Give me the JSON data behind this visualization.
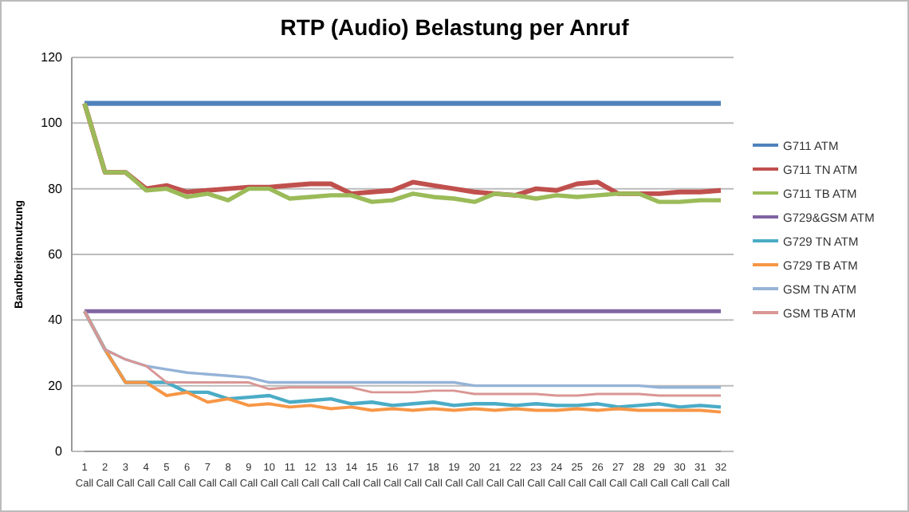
{
  "chart_data": {
    "type": "line",
    "title": "RTP (Audio) Belastung per Anruf",
    "ylabel": "Bandbreitennutzung",
    "categories": [
      "1 Call",
      "2 Call",
      "3 Call",
      "4 Call",
      "5 Call",
      "6 Call",
      "7 Call",
      "8 Call",
      "9 Call",
      "10 Call",
      "11 Call",
      "12 Call",
      "13 Call",
      "14 Call",
      "15 Call",
      "16 Call",
      "17 Call",
      "18 Call",
      "19 Call",
      "20 Call",
      "21 Call",
      "22 Call",
      "23 Call",
      "24 Call",
      "25 Call",
      "26 Call",
      "27 Call",
      "28 Call",
      "29 Call",
      "30 Call",
      "31 Call",
      "32 Call"
    ],
    "ylim": [
      0,
      120
    ],
    "yticks": [
      0,
      20,
      40,
      60,
      80,
      100,
      120
    ],
    "grid": "y",
    "legend": "right",
    "marker": "none",
    "line_style": "solid",
    "series": [
      {
        "name": "G711 ATM",
        "color": "#4f81bd",
        "values": [
          106,
          106,
          106,
          106,
          106,
          106,
          106,
          106,
          106,
          106,
          106,
          106,
          106,
          106,
          106,
          106,
          106,
          106,
          106,
          106,
          106,
          106,
          106,
          106,
          106,
          106,
          106,
          106,
          106,
          106,
          106,
          106
        ]
      },
      {
        "name": "G711 TN ATM",
        "color": "#c0504d",
        "values": [
          106,
          85,
          85,
          80,
          81,
          79,
          79.5,
          80,
          80.5,
          80.5,
          81,
          81.5,
          81.5,
          78.5,
          79,
          79.5,
          82,
          81,
          80,
          79,
          78.5,
          78,
          80,
          79.5,
          81.5,
          82,
          78.5,
          78.5,
          78.5,
          79,
          79,
          79.5
        ]
      },
      {
        "name": "G711 TB ATM",
        "color": "#9bbb59",
        "values": [
          106,
          85,
          85,
          79.5,
          80,
          77.5,
          78.5,
          76.5,
          80,
          80,
          77,
          77.5,
          78,
          78,
          76,
          76.5,
          78.5,
          77.5,
          77,
          76,
          78.5,
          78,
          77,
          78,
          77.5,
          78,
          78.5,
          78.5,
          76,
          76,
          76.5,
          76.5
        ]
      },
      {
        "name": "G729&GSM ATM",
        "color": "#8064a2",
        "values": [
          42.7,
          42.7,
          42.7,
          42.7,
          42.7,
          42.7,
          42.7,
          42.7,
          42.7,
          42.7,
          42.7,
          42.7,
          42.7,
          42.7,
          42.7,
          42.7,
          42.7,
          42.7,
          42.7,
          42.7,
          42.7,
          42.7,
          42.7,
          42.7,
          42.7,
          42.7,
          42.7,
          42.7,
          42.7,
          42.7,
          42.7,
          42.7
        ]
      },
      {
        "name": "G729 TN ATM",
        "color": "#4bacc6",
        "values": [
          42.7,
          31,
          21,
          21,
          21,
          18,
          18,
          16,
          16.5,
          17,
          15,
          15.5,
          16,
          14.5,
          15,
          14,
          14.5,
          15,
          14,
          14.5,
          14.5,
          14,
          14.5,
          14,
          14,
          14.5,
          13.5,
          14,
          14.5,
          13.5,
          14,
          13.5
        ]
      },
      {
        "name": "G729 TB ATM",
        "color": "#f79646",
        "values": [
          42.7,
          31,
          21,
          21,
          17,
          18,
          15,
          16,
          14,
          14.5,
          13.5,
          14,
          13,
          13.5,
          12.5,
          13,
          12.5,
          13,
          12.5,
          13,
          12.5,
          13,
          12.5,
          12.5,
          13,
          12.5,
          13,
          12.5,
          12.5,
          12.5,
          12.5,
          12
        ]
      },
      {
        "name": "GSM TN ATM",
        "color": "#95b3d7",
        "values": [
          42.7,
          31,
          28,
          26,
          25,
          24,
          23.5,
          23,
          22.5,
          21,
          21,
          21,
          21,
          21,
          21,
          21,
          21,
          21,
          21,
          20,
          20,
          20,
          20,
          20,
          20,
          20,
          20,
          20,
          19.5,
          19.5,
          19.5,
          19.5
        ]
      },
      {
        "name": "GSM TB ATM",
        "color": "#d99694",
        "values": [
          42.7,
          31,
          28,
          26,
          21,
          21,
          21,
          21,
          21,
          19,
          19.5,
          19.5,
          19.5,
          19.5,
          18,
          18,
          18,
          18.5,
          18.5,
          17.5,
          17.5,
          17.5,
          17.5,
          17,
          17,
          17.5,
          17.5,
          17.5,
          17,
          17,
          17,
          17
        ]
      }
    ]
  }
}
